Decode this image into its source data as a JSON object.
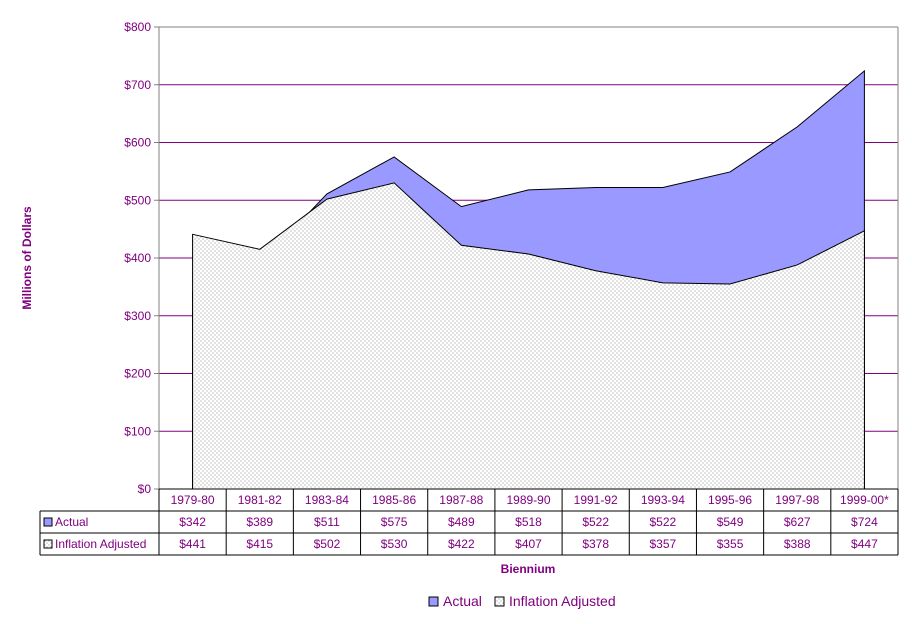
{
  "chart_data": {
    "type": "area",
    "categories": [
      "1979-80",
      "1981-82",
      "1983-84",
      "1985-86",
      "1987-88",
      "1989-90",
      "1991-92",
      "1993-94",
      "1995-96",
      "1997-98",
      "1999-00*"
    ],
    "series": [
      {
        "name": "Actual",
        "values": [
          342,
          389,
          511,
          575,
          489,
          518,
          522,
          522,
          549,
          627,
          724
        ],
        "labels": [
          "$342",
          "$389",
          "$511",
          "$575",
          "$489",
          "$518",
          "$522",
          "$522",
          "$549",
          "$627",
          "$724"
        ],
        "color": "#9999ff"
      },
      {
        "name": "Inflation Adjusted",
        "values": [
          441,
          415,
          502,
          530,
          422,
          407,
          378,
          357,
          355,
          388,
          447
        ],
        "labels": [
          "$441",
          "$415",
          "$502",
          "$530",
          "$422",
          "$407",
          "$378",
          "$357",
          "$355",
          "$388",
          "$447"
        ],
        "color": "#ffffff"
      }
    ],
    "ylim": [
      0,
      800
    ],
    "yticks": [
      "$0",
      "$100",
      "$200",
      "$300",
      "$400",
      "$500",
      "$600",
      "$700",
      "$800"
    ],
    "ylabel": "Millions of Dollars",
    "xlabel": "Biennium",
    "grid": true,
    "legend_position": "bottom",
    "data_table": true
  },
  "colors": {
    "text": "#800080",
    "grid": "#800080",
    "actual_fill": "#9999ff",
    "dots": "#a0a0a0"
  }
}
